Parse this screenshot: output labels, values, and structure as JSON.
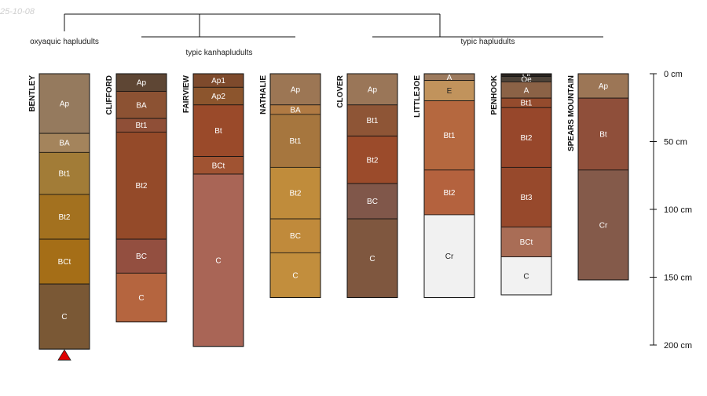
{
  "date_stamp": "25-10-08",
  "groups": [
    {
      "label": "oxyaquic hapludults"
    },
    {
      "label": "typic kanhapludults"
    },
    {
      "label": "typic hapludults"
    }
  ],
  "depth_axis": {
    "unit": "cm",
    "ticks": [
      {
        "value": 0,
        "label": "0 cm"
      },
      {
        "value": 50,
        "label": "50 cm"
      },
      {
        "value": 100,
        "label": "100 cm"
      },
      {
        "value": 150,
        "label": "150 cm"
      },
      {
        "value": 200,
        "label": "200 cm"
      }
    ]
  },
  "profiles": [
    {
      "name": "BENTLEY",
      "marker": "red-triangle",
      "horizons": [
        {
          "name": "Ap",
          "top": 0,
          "bottom": 44,
          "color": "#957a5e",
          "text": "#ffffff"
        },
        {
          "name": "BA",
          "top": 44,
          "bottom": 58,
          "color": "#a4845c",
          "text": "#ffffff"
        },
        {
          "name": "Bt1",
          "top": 58,
          "bottom": 89,
          "color": "#a27c37",
          "text": "#ffffff"
        },
        {
          "name": "Bt2",
          "top": 89,
          "bottom": 122,
          "color": "#a3711f",
          "text": "#ffffff"
        },
        {
          "name": "BCt",
          "top": 122,
          "bottom": 155,
          "color": "#a56e17",
          "text": "#ffffff"
        },
        {
          "name": "C",
          "top": 155,
          "bottom": 203,
          "color": "#7a5835",
          "text": "#ffffff"
        }
      ]
    },
    {
      "name": "CLIFFORD",
      "horizons": [
        {
          "name": "Ap",
          "top": 0,
          "bottom": 13,
          "color": "#5e4634",
          "text": "#ffffff"
        },
        {
          "name": "BA",
          "top": 13,
          "bottom": 33,
          "color": "#8c5233",
          "text": "#ffffff"
        },
        {
          "name": "Bt1",
          "top": 33,
          "bottom": 43,
          "color": "#8f4f37",
          "text": "#ffffff"
        },
        {
          "name": "Bt2",
          "top": 43,
          "bottom": 122,
          "color": "#944a29",
          "text": "#ffffff"
        },
        {
          "name": "BC",
          "top": 122,
          "bottom": 147,
          "color": "#934f40",
          "text": "#ffffff"
        },
        {
          "name": "C",
          "top": 147,
          "bottom": 183,
          "color": "#b5653f",
          "text": "#ffffff"
        }
      ]
    },
    {
      "name": "FAIRVIEW",
      "horizons": [
        {
          "name": "Ap1",
          "top": 0,
          "bottom": 10,
          "color": "#7e4a2c",
          "text": "#ffffff"
        },
        {
          "name": "Ap2",
          "top": 10,
          "bottom": 23,
          "color": "#8c552d",
          "text": "#ffffff"
        },
        {
          "name": "Bt",
          "top": 23,
          "bottom": 61,
          "color": "#9a4a2a",
          "text": "#ffffff"
        },
        {
          "name": "BCt",
          "top": 61,
          "bottom": 74,
          "color": "#a05332",
          "text": "#ffffff"
        },
        {
          "name": "C",
          "top": 74,
          "bottom": 201,
          "color": "#a96556",
          "text": "#ffffff"
        }
      ]
    },
    {
      "name": "NATHALIE",
      "horizons": [
        {
          "name": "Ap",
          "top": 0,
          "bottom": 23,
          "color": "#9c7654",
          "text": "#ffffff"
        },
        {
          "name": "BA",
          "top": 23,
          "bottom": 30,
          "color": "#b07a43",
          "text": "#ffffff"
        },
        {
          "name": "Bt1",
          "top": 30,
          "bottom": 69,
          "color": "#a6763e",
          "text": "#ffffff"
        },
        {
          "name": "Bt2",
          "top": 69,
          "bottom": 107,
          "color": "#c08c3b",
          "text": "#ffffff"
        },
        {
          "name": "BC",
          "top": 107,
          "bottom": 132,
          "color": "#c08a3b",
          "text": "#ffffff"
        },
        {
          "name": "C",
          "top": 132,
          "bottom": 165,
          "color": "#c28e3d",
          "text": "#ffffff"
        }
      ]
    },
    {
      "name": "CLOVER",
      "horizons": [
        {
          "name": "Ap",
          "top": 0,
          "bottom": 23,
          "color": "#9a7658",
          "text": "#ffffff"
        },
        {
          "name": "Bt1",
          "top": 23,
          "bottom": 46,
          "color": "#8e5536",
          "text": "#ffffff"
        },
        {
          "name": "Bt2",
          "top": 46,
          "bottom": 81,
          "color": "#9b4b2b",
          "text": "#ffffff"
        },
        {
          "name": "BC",
          "top": 81,
          "bottom": 107,
          "color": "#80574a",
          "text": "#ffffff"
        },
        {
          "name": "C",
          "top": 107,
          "bottom": 165,
          "color": "#7f573f",
          "text": "#ffffff"
        }
      ]
    },
    {
      "name": "LITTLEJOE",
      "horizons": [
        {
          "name": "A",
          "top": 0,
          "bottom": 5,
          "color": "#9d7b5e",
          "text": "#ffffff"
        },
        {
          "name": "E",
          "top": 5,
          "bottom": 20,
          "color": "#c1935c",
          "text": "#222222"
        },
        {
          "name": "Bt1",
          "top": 20,
          "bottom": 71,
          "color": "#b5683f",
          "text": "#ffffff"
        },
        {
          "name": "Bt2",
          "top": 71,
          "bottom": 104,
          "color": "#b4623e",
          "text": "#ffffff"
        },
        {
          "name": "Cr",
          "top": 104,
          "bottom": 165,
          "color": "#f1f1f1",
          "text": "#222222"
        }
      ]
    },
    {
      "name": "PENHOOK",
      "horizons": [
        {
          "name": "Oi",
          "top": 0,
          "bottom": 2,
          "color": "#2a241f",
          "text": "#ffffff"
        },
        {
          "name": "Oe",
          "top": 2,
          "bottom": 6,
          "color": "#4c4238",
          "text": "#ffffff"
        },
        {
          "name": "A",
          "top": 6,
          "bottom": 18,
          "color": "#8b6246",
          "text": "#ffffff"
        },
        {
          "name": "Bt1",
          "top": 18,
          "bottom": 25,
          "color": "#944b2d",
          "text": "#ffffff"
        },
        {
          "name": "Bt2",
          "top": 25,
          "bottom": 69,
          "color": "#97472b",
          "text": "#ffffff"
        },
        {
          "name": "Bt3",
          "top": 69,
          "bottom": 113,
          "color": "#97492c",
          "text": "#ffffff"
        },
        {
          "name": "BCt",
          "top": 113,
          "bottom": 135,
          "color": "#a96d56",
          "text": "#ffffff"
        },
        {
          "name": "C",
          "top": 135,
          "bottom": 163,
          "color": "#f2f2f2",
          "text": "#222222"
        }
      ]
    },
    {
      "name": "SPEARS MOUNTAIN",
      "horizons": [
        {
          "name": "Ap",
          "top": 0,
          "bottom": 18,
          "color": "#9c7656",
          "text": "#ffffff"
        },
        {
          "name": "Bt",
          "top": 18,
          "bottom": 71,
          "color": "#8f4f3a",
          "text": "#ffffff"
        },
        {
          "name": "Cr",
          "top": 71,
          "bottom": 152,
          "color": "#845a4a",
          "text": "#ffffff"
        }
      ]
    }
  ]
}
